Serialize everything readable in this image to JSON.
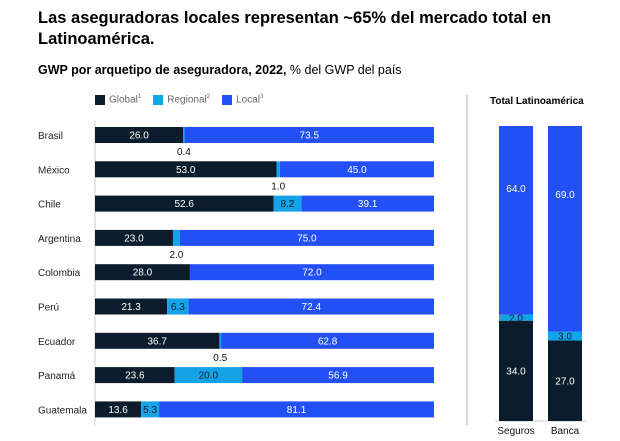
{
  "header": {
    "title": "Las aseguradoras locales representan ~65% del mercado total en Latinoamérica.",
    "subtitle_bold": "GWP por arquetipo de aseguradora, 2022,",
    "subtitle_rest": " % del GWP del país"
  },
  "colors": {
    "global": "#0b1c2c",
    "regional": "#13a3e6",
    "local": "#2350f5"
  },
  "chart_data": [
    {
      "type": "bar",
      "orientation": "horizontal-stacked",
      "title": "GWP por arquetipo de aseguradora, 2022, % del GWP del país",
      "legend": [
        {
          "name": "Global",
          "footnote": "1"
        },
        {
          "name": "Regional",
          "footnote": "2"
        },
        {
          "name": "Local",
          "footnote": "3"
        }
      ],
      "legend_position": "top-left",
      "categories": [
        "Brasil",
        "México",
        "Chile",
        "Argentina",
        "Colombia",
        "Perú",
        "Ecuador",
        "Panamá",
        "Guatemala"
      ],
      "series": [
        {
          "name": "Global",
          "values": [
            26.0,
            53.0,
            52.6,
            23.0,
            28.0,
            21.3,
            36.7,
            23.6,
            13.6
          ]
        },
        {
          "name": "Regional",
          "values": [
            0.4,
            1.0,
            8.2,
            2.0,
            0.0,
            6.3,
            0.5,
            20.0,
            5.3
          ]
        },
        {
          "name": "Local",
          "values": [
            73.5,
            45.0,
            39.1,
            75.0,
            72.0,
            72.4,
            62.8,
            56.9,
            81.1
          ]
        }
      ],
      "labels": [
        [
          "26.0",
          "0.4",
          "73.5"
        ],
        [
          "53.0",
          "1.0",
          "45.0"
        ],
        [
          "52.6",
          "8.2",
          "39.1"
        ],
        [
          "23.0",
          "2.0",
          "75.0"
        ],
        [
          "28.0",
          "",
          "72.0"
        ],
        [
          "21.3",
          "6.3",
          "72.4"
        ],
        [
          "36.7",
          "0.5",
          "62.8"
        ],
        [
          "23.6",
          "20.0",
          "56.9"
        ],
        [
          "13.6",
          "5.3",
          "81.1"
        ]
      ],
      "regional_label_below": [
        true,
        true,
        false,
        true,
        false,
        false,
        true,
        false,
        false
      ],
      "xlim": [
        0,
        100
      ],
      "grid": false
    },
    {
      "type": "bar",
      "orientation": "vertical-stacked",
      "title": "Total Latinoamérica",
      "categories": [
        "Seguros",
        "Banca"
      ],
      "series": [
        {
          "name": "Global",
          "values": [
            34.0,
            27.0
          ]
        },
        {
          "name": "Regional",
          "values": [
            2.0,
            3.0
          ]
        },
        {
          "name": "Local",
          "values": [
            64.0,
            69.0
          ]
        }
      ],
      "labels": [
        [
          "34.0",
          "2.0",
          "64.0"
        ],
        [
          "27.0",
          "3.0",
          "69.0"
        ]
      ],
      "ylim": [
        0,
        100
      ],
      "grid": false
    }
  ]
}
